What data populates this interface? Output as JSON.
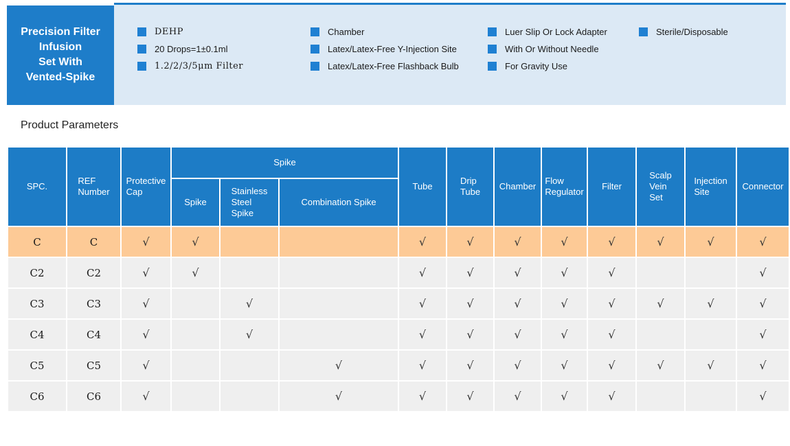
{
  "product": {
    "title": "Precision Filter\nInfusion\nSet With\nVented-Spike"
  },
  "features": {
    "col1": [
      "DEHP",
      "20 Drops=1±0.1ml",
      "1.2/2/3/5μm Filter"
    ],
    "col2": [
      "Chamber",
      "Latex/Latex-Free Y-Injection Site",
      "Latex/Latex-Free Flashback Bulb"
    ],
    "col3": [
      "Luer Slip Or Lock Adapter",
      "With Or Without Needle",
      "For Gravity Use"
    ],
    "col4": [
      "Sterile/Disposable"
    ]
  },
  "section": {
    "title": "Product Parameters"
  },
  "table": {
    "spike_group_label": "Spike",
    "columns": [
      "SPC.",
      "REF\nNumber",
      "Protective\nCap",
      "Spike",
      "Stainless\nSteel\nSpike",
      "Combination Spike",
      "Tube",
      "Drip\nTube",
      "Chamber",
      "Flow\nRegulator",
      "Filter",
      "Scalp\nVein\nSet",
      "Injection\nSite",
      "Connector"
    ],
    "check_mark": "√",
    "rows": [
      {
        "spc": "C",
        "ref": "C",
        "highlight": true,
        "checks": [
          1,
          1,
          0,
          0,
          1,
          1,
          1,
          1,
          1,
          1,
          1,
          1
        ]
      },
      {
        "spc": "C2",
        "ref": "C2",
        "highlight": false,
        "checks": [
          1,
          1,
          0,
          0,
          1,
          1,
          1,
          1,
          1,
          0,
          0,
          1
        ]
      },
      {
        "spc": "C3",
        "ref": "C3",
        "highlight": false,
        "checks": [
          1,
          0,
          1,
          0,
          1,
          1,
          1,
          1,
          1,
          1,
          1,
          1
        ]
      },
      {
        "spc": "C4",
        "ref": "C4",
        "highlight": false,
        "checks": [
          1,
          0,
          1,
          0,
          1,
          1,
          1,
          1,
          1,
          0,
          0,
          1
        ]
      },
      {
        "spc": "C5",
        "ref": "C5",
        "highlight": false,
        "checks": [
          1,
          0,
          0,
          1,
          1,
          1,
          1,
          1,
          1,
          1,
          1,
          1
        ]
      },
      {
        "spc": "C6",
        "ref": "C6",
        "highlight": false,
        "checks": [
          1,
          0,
          0,
          1,
          1,
          1,
          1,
          1,
          1,
          0,
          0,
          1
        ]
      }
    ]
  },
  "colors": {
    "primary_blue": "#1e7dc9",
    "table_header_blue": "#1d7cc6",
    "banner_bg": "#dce9f5",
    "bullet_blue": "#1f80d2",
    "highlight_row_bg": "#fdca96",
    "row_bg": "#efefef"
  }
}
